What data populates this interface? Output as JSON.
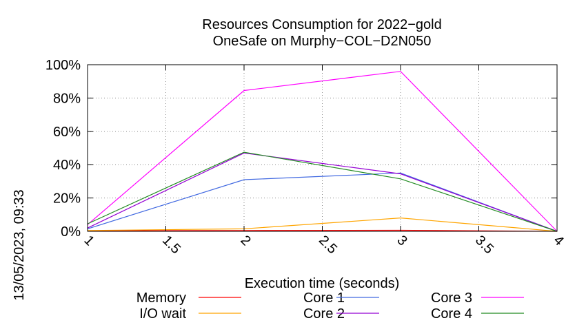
{
  "chart_data": {
    "type": "line",
    "title_lines": [
      "Resources Consumption for 2022−gold",
      "OneSafe on Murphy−COL−D2N050"
    ],
    "xlabel": "Execution time (seconds)",
    "ylabel": "",
    "side_label": "13/05/2023, 09:33",
    "xlim": [
      1,
      4
    ],
    "ylim": [
      0,
      100
    ],
    "x_ticks": [
      1,
      1.5,
      2,
      2.5,
      3,
      3.5,
      4
    ],
    "x_tick_labels": [
      "1",
      "1.5",
      "2",
      "2.5",
      "3",
      "3.5",
      "4"
    ],
    "y_ticks": [
      0,
      20,
      40,
      60,
      80,
      100
    ],
    "y_tick_labels": [
      "0%",
      "20%",
      "40%",
      "60%",
      "80%",
      "100%"
    ],
    "grid": true,
    "legend_position": "bottom",
    "x": [
      1,
      2,
      3,
      4
    ],
    "series": [
      {
        "name": "Memory",
        "color": "#ff0000",
        "values": [
          0.3,
          0.5,
          0.6,
          0
        ]
      },
      {
        "name": "I/O wait",
        "color": "#ffa500",
        "values": [
          0.5,
          1.5,
          8,
          0
        ]
      },
      {
        "name": "Core 1",
        "color": "#4169e1",
        "values": [
          1.5,
          31,
          35,
          0
        ]
      },
      {
        "name": "Core 2",
        "color": "#9400d3",
        "values": [
          2,
          47,
          34.5,
          0
        ]
      },
      {
        "name": "Core 3",
        "color": "#ff00ff",
        "values": [
          4,
          84.5,
          96,
          0
        ]
      },
      {
        "name": "Core 4",
        "color": "#228b22",
        "values": [
          4.5,
          47.5,
          31.5,
          0
        ]
      }
    ]
  }
}
